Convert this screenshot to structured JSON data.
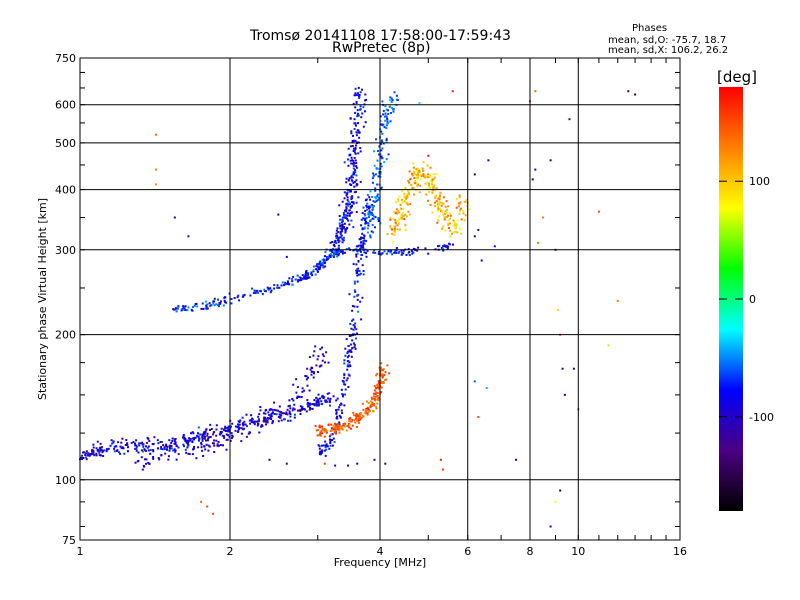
{
  "header": {
    "title": "Tromsø 20141108 17:58:00-17:59:43",
    "subtitle": "RwPretec (8p)",
    "stats_title": "Phases",
    "stats_o": "mean, sd,O: -75.7, 18.7",
    "stats_x": "mean, sd,X: 106.2, 26.2"
  },
  "chart_data": {
    "type": "scatter",
    "xlabel": "Frequency [MHz]",
    "ylabel": "Stationary phase Virtual Height [km]",
    "xscale": "log",
    "yscale": "log",
    "xlim": [
      1,
      16
    ],
    "ylim": [
      75,
      750
    ],
    "x_ticks": [
      1,
      2,
      4,
      6,
      8,
      10,
      16
    ],
    "y_ticks": [
      75,
      100,
      200,
      300,
      400,
      500,
      600,
      750
    ],
    "x_grid": [
      2,
      4,
      6,
      8,
      10
    ],
    "y_grid": [
      100,
      200,
      300,
      400,
      500,
      600
    ],
    "grid": true,
    "colorbar": {
      "label": "[deg]",
      "range": [
        -180,
        180
      ],
      "ticks": [
        100,
        0,
        -100
      ],
      "colors": [
        "#000000",
        "#4b0082",
        "#0000ff",
        "#00ffff",
        "#00ff00",
        "#ffff00",
        "#ff8000",
        "#ff0000"
      ]
    },
    "traces": [
      {
        "points": [
          [
            1.0,
            112
          ],
          [
            1.05,
            114
          ],
          [
            1.1,
            116
          ],
          [
            1.2,
            117
          ],
          [
            1.3,
            118
          ],
          [
            1.4,
            118
          ],
          [
            1.5,
            116
          ],
          [
            1.6,
            119
          ],
          [
            1.7,
            122
          ],
          [
            1.8,
            124
          ],
          [
            2.0,
            128
          ],
          [
            2.2,
            131
          ],
          [
            2.4,
            134
          ],
          [
            2.6,
            137
          ],
          [
            2.8,
            140
          ],
          [
            3.0,
            144
          ],
          [
            3.2,
            150
          ]
        ],
        "phase": -120,
        "phase2": -60,
        "spread": 0.06,
        "count": 420
      },
      {
        "points": [
          [
            3.0,
            114
          ],
          [
            3.2,
            120
          ],
          [
            3.35,
            145
          ],
          [
            3.45,
            175
          ],
          [
            3.55,
            205
          ],
          [
            3.6,
            250
          ],
          [
            3.65,
            298
          ],
          [
            3.7,
            320
          ],
          [
            3.8,
            380
          ]
        ],
        "phase": -110,
        "phase2": -60,
        "spread": 0.05,
        "count": 260
      },
      {
        "points": [
          [
            1.3,
            108
          ],
          [
            1.55,
            115
          ],
          [
            1.8,
            118
          ],
          [
            2.0,
            124
          ],
          [
            2.3,
            132
          ],
          [
            2.6,
            142
          ],
          [
            2.9,
            165
          ],
          [
            3.1,
            185
          ]
        ],
        "phase": -115,
        "phase2": -80,
        "spread": 0.1,
        "count": 200
      },
      {
        "points": [
          [
            3.0,
            125
          ],
          [
            3.25,
            128
          ],
          [
            3.5,
            131
          ],
          [
            3.7,
            137
          ],
          [
            3.9,
            145
          ],
          [
            4.0,
            160
          ],
          [
            4.05,
            170
          ]
        ],
        "phase": 125,
        "phase2": 165,
        "spread": 0.05,
        "count": 230
      },
      {
        "points": [
          [
            1.55,
            225
          ],
          [
            1.8,
            230
          ],
          [
            2.1,
            240
          ],
          [
            2.5,
            252
          ],
          [
            2.8,
            262
          ],
          [
            3.0,
            275
          ],
          [
            3.15,
            290
          ],
          [
            3.4,
            300
          ],
          [
            4.0,
            298
          ],
          [
            4.6,
            298
          ],
          [
            5.6,
            306
          ]
        ],
        "phase": -100,
        "phase2": -50,
        "spread": 0.035,
        "count": 320
      },
      {
        "points": [
          [
            3.2,
            300
          ],
          [
            3.35,
            330
          ],
          [
            3.45,
            360
          ],
          [
            3.5,
            400
          ],
          [
            3.55,
            460
          ],
          [
            3.6,
            540
          ],
          [
            3.65,
            640
          ]
        ],
        "phase": -110,
        "phase2": -60,
        "spread": 0.07,
        "count": 270
      },
      {
        "points": [
          [
            3.8,
            320
          ],
          [
            3.9,
            380
          ],
          [
            4.0,
            450
          ],
          [
            4.1,
            550
          ],
          [
            4.25,
            640
          ]
        ],
        "phase": -40,
        "phase2": -75,
        "spread": 0.07,
        "count": 150
      },
      {
        "points": [
          [
            4.2,
            320
          ],
          [
            4.4,
            360
          ],
          [
            4.6,
            400
          ],
          [
            4.8,
            440
          ],
          [
            5.0,
            420
          ],
          [
            5.2,
            380
          ],
          [
            5.4,
            350
          ],
          [
            5.7,
            330
          ],
          [
            5.9,
            380
          ]
        ],
        "phase": 140,
        "phase2": 70,
        "spread": 0.08,
        "count": 280
      }
    ],
    "scatter": [
      [
        1.42,
        520,
        140
      ],
      [
        1.42,
        440,
        130
      ],
      [
        1.42,
        410,
        130
      ],
      [
        1.55,
        350,
        -100
      ],
      [
        1.65,
        320,
        -110
      ],
      [
        1.75,
        90,
        140
      ],
      [
        1.8,
        88,
        150
      ],
      [
        1.85,
        85,
        150
      ],
      [
        2.5,
        355,
        -100
      ],
      [
        2.6,
        290,
        -80
      ],
      [
        2.4,
        110,
        -140
      ],
      [
        2.6,
        108,
        -130
      ],
      [
        3.1,
        108,
        160
      ],
      [
        3.25,
        107,
        -100
      ],
      [
        3.45,
        107,
        -100
      ],
      [
        3.6,
        108,
        -80
      ],
      [
        3.9,
        110,
        -110
      ],
      [
        4.1,
        108,
        -140
      ],
      [
        5.3,
        110,
        170
      ],
      [
        5.35,
        105,
        160
      ],
      [
        6.2,
        320,
        -150
      ],
      [
        6.3,
        330,
        -130
      ],
      [
        6.4,
        285,
        -80
      ],
      [
        6.2,
        160,
        -60
      ],
      [
        6.3,
        135,
        150
      ],
      [
        6.55,
        155,
        -40
      ],
      [
        6.8,
        305,
        -90
      ],
      [
        7.5,
        110,
        -100
      ],
      [
        8.2,
        640,
        140
      ],
      [
        8.1,
        420,
        -150
      ],
      [
        8.2,
        440,
        -100
      ],
      [
        8.3,
        310,
        130
      ],
      [
        8.5,
        350,
        130
      ],
      [
        8.8,
        460,
        -140
      ],
      [
        9.0,
        300,
        -110
      ],
      [
        9.1,
        225,
        90
      ],
      [
        9.2,
        200,
        160
      ],
      [
        9.3,
        170,
        -140
      ],
      [
        9.6,
        560,
        -120
      ],
      [
        9.8,
        170,
        -100
      ],
      [
        10.0,
        140,
        150
      ],
      [
        11.0,
        360,
        150
      ],
      [
        11.5,
        190,
        90
      ],
      [
        12.0,
        235,
        130
      ],
      [
        12.6,
        640,
        -140
      ],
      [
        13.0,
        630,
        -150
      ],
      [
        9.2,
        95,
        -160
      ],
      [
        9.0,
        90,
        80
      ],
      [
        8.8,
        80,
        -120
      ],
      [
        4.8,
        605,
        -30
      ],
      [
        5.0,
        470,
        170
      ],
      [
        5.6,
        640,
        170
      ],
      [
        6.6,
        460,
        -100
      ],
      [
        6.2,
        430,
        -150
      ],
      [
        8.0,
        610,
        160
      ],
      [
        9.4,
        150,
        -110
      ]
    ]
  }
}
